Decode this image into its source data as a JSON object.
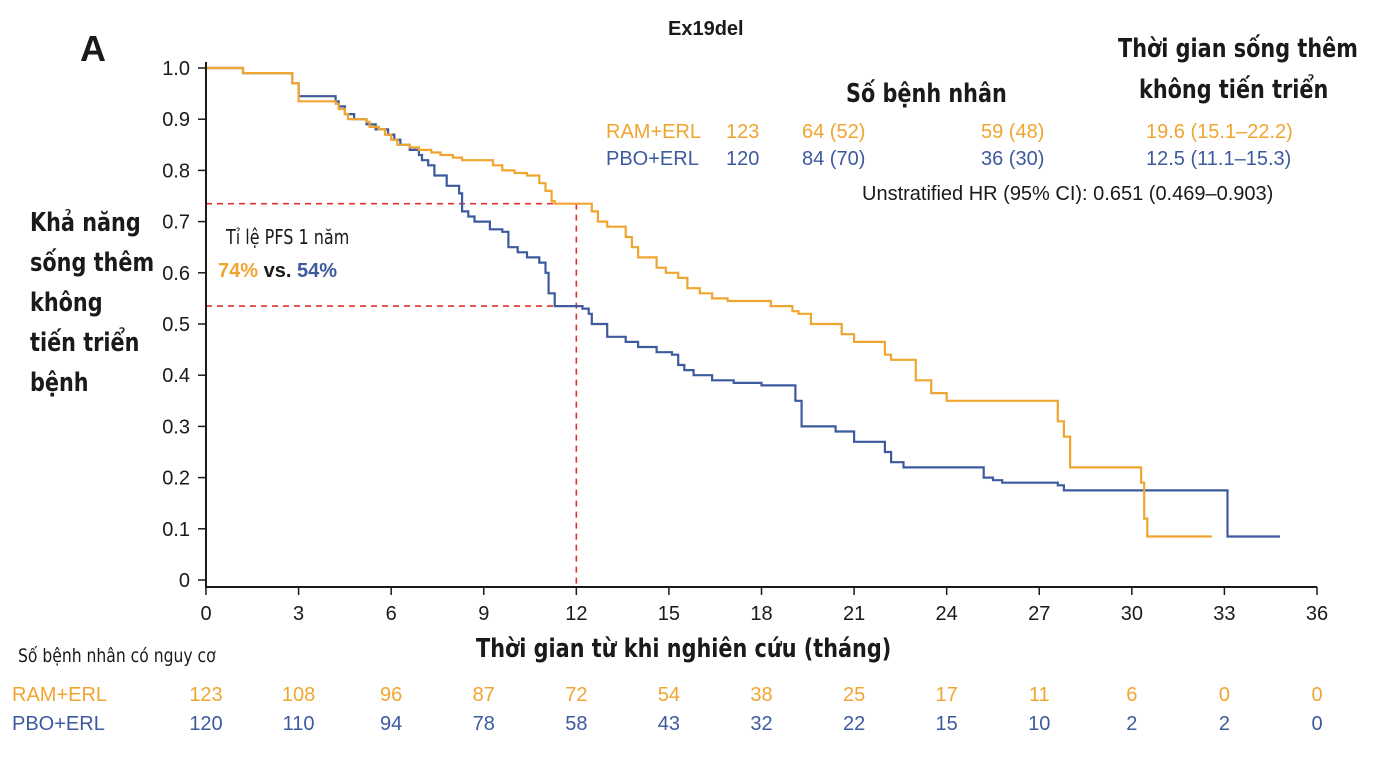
{
  "panel_label": "A",
  "colors": {
    "ram": "#F0A531",
    "pbo": "#3D5A9E",
    "ref": "#E0302B",
    "axis": "#1a1a1a"
  },
  "legend": {
    "patients_header": "Số bệnh nhân",
    "pfs_header_line1": "Thời gian sống thêm",
    "pfs_header_line2": "không tiến triển",
    "rows": [
      {
        "arm": "RAM+ERL",
        "n": "123",
        "events": "64 (52)",
        "censored": "59 (48)",
        "median": "19.6 (15.1–22.2)"
      },
      {
        "arm": "PBO+ERL",
        "n": "120",
        "events": "84 (70)",
        "censored": "36 (30)",
        "median": "12.5 (11.1–15.3)"
      }
    ],
    "hr": "Unstratified HR (95% CI): 0.651 (0.469–0.903)"
  },
  "annotation": {
    "title": "Tỉ lệ PFS 1 năm",
    "ram": "74%",
    "vs": "vs.",
    "pbo": "54%"
  },
  "ylabel_lines": [
    "Khả năng",
    "sống thêm",
    "không",
    "tiến triển",
    "bệnh"
  ],
  "risk_table": {
    "title": "Số bệnh nhân có nguy cơ",
    "rows": [
      {
        "label": "RAM+ERL",
        "values": [
          "123",
          "108",
          "96",
          "87",
          "72",
          "54",
          "38",
          "25",
          "17",
          "11",
          "6",
          "0",
          "0"
        ]
      },
      {
        "label": "PBO+ERL",
        "values": [
          "120",
          "110",
          "94",
          "78",
          "58",
          "43",
          "32",
          "22",
          "15",
          "10",
          "2",
          "2",
          "0"
        ]
      }
    ]
  },
  "chart_data": {
    "type": "line",
    "title": "Ex19del",
    "xlabel": "Thời gian từ khi nghiên cứu (tháng)",
    "ylabel": "Khả năng sống thêm không tiến triển bệnh",
    "xlim": [
      0,
      36
    ],
    "ylim": [
      0,
      1.0
    ],
    "xticks": [
      0,
      3,
      6,
      9,
      12,
      15,
      18,
      21,
      24,
      27,
      30,
      33,
      36
    ],
    "yticks": [
      0,
      0.1,
      0.2,
      0.3,
      0.4,
      0.5,
      0.6,
      0.7,
      0.8,
      0.9,
      1.0
    ],
    "ytick_labels": [
      "0",
      "0.1",
      "0.2",
      "0.3",
      "0.4",
      "0.5",
      "0.6",
      "0.7",
      "0.8",
      "0.9",
      "1.0"
    ],
    "reference": {
      "x": 12,
      "y_values": [
        0.735,
        0.535
      ]
    },
    "series": [
      {
        "name": "RAM+ERL",
        "step": true,
        "x": [
          0,
          1.2,
          2.8,
          3.0,
          4.2,
          4.3,
          4.5,
          4.6,
          5.2,
          5.3,
          5.6,
          5.8,
          6.0,
          6.2,
          6.6,
          6.9,
          7.3,
          7.6,
          8.0,
          8.3,
          9.3,
          9.6,
          10.0,
          10.4,
          10.8,
          11.0,
          11.2,
          11.3,
          11.5,
          12.0,
          12.5,
          12.7,
          13.0,
          13.6,
          13.8,
          14.0,
          14.6,
          14.9,
          15.3,
          15.6,
          16.0,
          16.4,
          16.9,
          18.3,
          19.0,
          19.2,
          19.6,
          20.6,
          21.0,
          22.0,
          22.2,
          23.0,
          23.5,
          24.0,
          27.6,
          27.8,
          28.0,
          30.3,
          30.4,
          30.5,
          32.6
        ],
        "y": [
          1.0,
          0.99,
          0.97,
          0.935,
          0.93,
          0.92,
          0.91,
          0.9,
          0.895,
          0.885,
          0.88,
          0.87,
          0.86,
          0.85,
          0.845,
          0.84,
          0.835,
          0.83,
          0.825,
          0.82,
          0.81,
          0.8,
          0.795,
          0.79,
          0.775,
          0.76,
          0.74,
          0.735,
          0.735,
          0.735,
          0.72,
          0.7,
          0.69,
          0.67,
          0.65,
          0.63,
          0.61,
          0.6,
          0.59,
          0.57,
          0.56,
          0.55,
          0.545,
          0.535,
          0.525,
          0.52,
          0.5,
          0.48,
          0.465,
          0.44,
          0.43,
          0.39,
          0.365,
          0.35,
          0.31,
          0.28,
          0.22,
          0.19,
          0.12,
          0.085,
          0.085
        ]
      },
      {
        "name": "PBO+ERL",
        "step": true,
        "x": [
          0,
          1.2,
          2.8,
          3.0,
          4.2,
          4.3,
          4.5,
          4.8,
          5.2,
          5.5,
          5.9,
          6.1,
          6.3,
          6.6,
          6.9,
          7.0,
          7.2,
          7.4,
          7.8,
          8.2,
          8.3,
          8.5,
          8.7,
          9.2,
          9.6,
          9.8,
          10.1,
          10.4,
          10.8,
          11.0,
          11.1,
          11.3,
          12.0,
          12.2,
          12.4,
          12.5,
          13.0,
          13.6,
          14.0,
          14.6,
          15.1,
          15.3,
          15.5,
          15.8,
          16.4,
          17.1,
          18.0,
          19.1,
          19.3,
          20.4,
          21.0,
          22.0,
          22.2,
          22.6,
          25.2,
          25.5,
          25.8,
          27.6,
          27.8,
          33.1
        ],
        "y": [
          1.0,
          0.99,
          0.97,
          0.945,
          0.935,
          0.925,
          0.91,
          0.9,
          0.89,
          0.88,
          0.87,
          0.86,
          0.85,
          0.84,
          0.83,
          0.82,
          0.81,
          0.79,
          0.77,
          0.755,
          0.72,
          0.71,
          0.7,
          0.685,
          0.68,
          0.65,
          0.64,
          0.63,
          0.62,
          0.6,
          0.56,
          0.535,
          0.535,
          0.53,
          0.52,
          0.5,
          0.475,
          0.465,
          0.455,
          0.445,
          0.44,
          0.42,
          0.41,
          0.4,
          0.39,
          0.385,
          0.38,
          0.35,
          0.3,
          0.29,
          0.27,
          0.25,
          0.23,
          0.22,
          0.2,
          0.195,
          0.19,
          0.185,
          0.175,
          0.085
        ]
      }
    ]
  }
}
